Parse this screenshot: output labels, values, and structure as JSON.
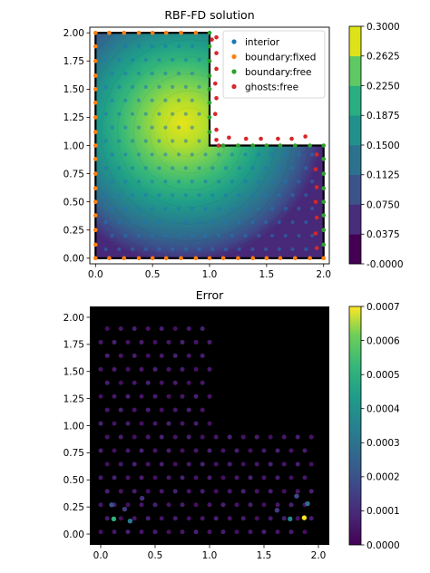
{
  "chart_data": [
    {
      "type": "contour",
      "title": "RBF-FD solution",
      "xlim": [
        -0.05,
        2.05
      ],
      "ylim": [
        -0.05,
        2.05
      ],
      "xticks": [
        0.0,
        0.5,
        1.0,
        1.5,
        2.0
      ],
      "yticks": [
        0.0,
        0.25,
        0.5,
        0.75,
        1.0,
        1.25,
        1.5,
        1.75,
        2.0
      ],
      "colormap": "viridis",
      "colorbar": {
        "range": [
          0.0,
          0.3
        ],
        "ticks": [
          0.0,
          0.0375,
          0.075,
          0.1125,
          0.15,
          0.1875,
          0.225,
          0.2625,
          0.3
        ],
        "tick_labels": [
          "-0.0000",
          "0.0375",
          "0.0750",
          "0.1125",
          "0.1500",
          "0.1875",
          "0.2250",
          "0.2625",
          "0.3000"
        ]
      },
      "domain_outline": [
        [
          0,
          0
        ],
        [
          2,
          0
        ],
        [
          2,
          1
        ],
        [
          1,
          1
        ],
        [
          1,
          2
        ],
        [
          0,
          2
        ],
        [
          0,
          0
        ]
      ],
      "legend": {
        "placement": "top-right",
        "entries": [
          {
            "label": "interior",
            "color": "#1f77b4"
          },
          {
            "label": "boundary:fixed",
            "color": "#ff7f0e"
          },
          {
            "label": "boundary:free",
            "color": "#2ca02c"
          },
          {
            "label": "ghosts:free",
            "color": "#d62728"
          }
        ]
      },
      "series": [
        {
          "name": "boundary:fixed",
          "color": "#ff7f0e",
          "points": [
            [
              0,
              0
            ],
            [
              0.12,
              0
            ],
            [
              0.25,
              0
            ],
            [
              0.38,
              0
            ],
            [
              0.5,
              0
            ],
            [
              0.62,
              0
            ],
            [
              0.75,
              0
            ],
            [
              0.88,
              0
            ],
            [
              1,
              0
            ],
            [
              1.12,
              0
            ],
            [
              1.25,
              0
            ],
            [
              1.38,
              0
            ],
            [
              1.5,
              0
            ],
            [
              1.62,
              0
            ],
            [
              1.75,
              0
            ],
            [
              1.88,
              0
            ],
            [
              2,
              0
            ],
            [
              0,
              0.12
            ],
            [
              0,
              0.25
            ],
            [
              0,
              0.38
            ],
            [
              0,
              0.5
            ],
            [
              0,
              0.62
            ],
            [
              0,
              0.75
            ],
            [
              0,
              0.88
            ],
            [
              0,
              1
            ],
            [
              0,
              1.12
            ],
            [
              0,
              1.25
            ],
            [
              0,
              1.38
            ],
            [
              0,
              1.5
            ],
            [
              0,
              1.62
            ],
            [
              0,
              1.75
            ],
            [
              0,
              1.88
            ],
            [
              0,
              2
            ],
            [
              0.12,
              2
            ],
            [
              0.25,
              2
            ],
            [
              0.38,
              2
            ],
            [
              0.5,
              2
            ],
            [
              0.62,
              2
            ],
            [
              0.75,
              2
            ],
            [
              0.88,
              2
            ]
          ]
        },
        {
          "name": "boundary:free",
          "color": "#2ca02c",
          "points": [
            [
              1,
              2
            ],
            [
              1,
              1.88
            ],
            [
              1,
              1.75
            ],
            [
              1,
              1.62
            ],
            [
              1,
              1.5
            ],
            [
              1,
              1.38
            ],
            [
              1,
              1.25
            ],
            [
              1,
              1.12
            ],
            [
              1.12,
              1
            ],
            [
              1.25,
              1
            ],
            [
              1.38,
              1
            ],
            [
              1.5,
              1
            ],
            [
              1.62,
              1
            ],
            [
              1.75,
              1
            ],
            [
              1.88,
              1
            ],
            [
              2,
              1
            ],
            [
              2,
              0.88
            ],
            [
              2,
              0.75
            ],
            [
              2,
              0.62
            ],
            [
              2,
              0.5
            ],
            [
              2,
              0.38
            ],
            [
              2,
              0.25
            ],
            [
              2,
              0.12
            ]
          ]
        },
        {
          "name": "ghosts:free",
          "color": "#d62728",
          "points": [
            [
              1.06,
              1.96
            ],
            [
              1.06,
              1.82
            ],
            [
              1.06,
              1.68
            ],
            [
              1.05,
              1.55
            ],
            [
              1.06,
              1.42
            ],
            [
              1.05,
              1.28
            ],
            [
              1.06,
              1.14
            ],
            [
              1.06,
              1.05
            ],
            [
              1.17,
              1.07
            ],
            [
              1.32,
              1.06
            ],
            [
              1.45,
              1.06
            ],
            [
              1.6,
              1.06
            ],
            [
              1.72,
              1.06
            ],
            [
              1.84,
              1.08
            ],
            [
              1.94,
              0.92
            ],
            [
              1.93,
              0.79
            ],
            [
              1.94,
              0.63
            ],
            [
              1.93,
              0.5
            ],
            [
              1.94,
              0.36
            ],
            [
              1.93,
              0.22
            ],
            [
              1.94,
              0.09
            ],
            [
              1.08,
              1.0
            ],
            [
              1.02,
              1.94
            ]
          ]
        }
      ]
    },
    {
      "type": "scatter",
      "title": "Error",
      "xlim": [
        -0.1,
        2.1
      ],
      "ylim": [
        -0.1,
        2.1
      ],
      "xticks": [
        0.0,
        0.5,
        1.0,
        1.5,
        2.0
      ],
      "yticks": [
        0.0,
        0.25,
        0.5,
        0.75,
        1.0,
        1.25,
        1.5,
        1.75,
        2.0
      ],
      "background": "#000000",
      "colormap": "viridis",
      "colorbar": {
        "range": [
          0.0,
          0.0007
        ],
        "ticks": [
          0.0,
          0.0001,
          0.0002,
          0.0003,
          0.0004,
          0.0005,
          0.0006,
          0.0007
        ],
        "tick_labels": [
          "0.0000",
          "0.0001",
          "0.0002",
          "0.0003",
          "0.0004",
          "0.0005",
          "0.0006",
          "0.0007"
        ]
      },
      "highlight_points": [
        {
          "x": 0.12,
          "y": 0.14,
          "value": 0.00045
        },
        {
          "x": 0.27,
          "y": 0.12,
          "value": 0.00028
        },
        {
          "x": 0.1,
          "y": 0.27,
          "value": 0.00018
        },
        {
          "x": 0.22,
          "y": 0.23,
          "value": 0.00012
        },
        {
          "x": 1.74,
          "y": 0.14,
          "value": 0.00032
        },
        {
          "x": 1.87,
          "y": 0.15,
          "value": 0.0007
        },
        {
          "x": 1.9,
          "y": 0.28,
          "value": 0.00026
        },
        {
          "x": 1.8,
          "y": 0.35,
          "value": 0.00016
        },
        {
          "x": 1.62,
          "y": 0.22,
          "value": 0.00012
        },
        {
          "x": 0.38,
          "y": 0.33,
          "value": 0.0001
        }
      ]
    }
  ]
}
